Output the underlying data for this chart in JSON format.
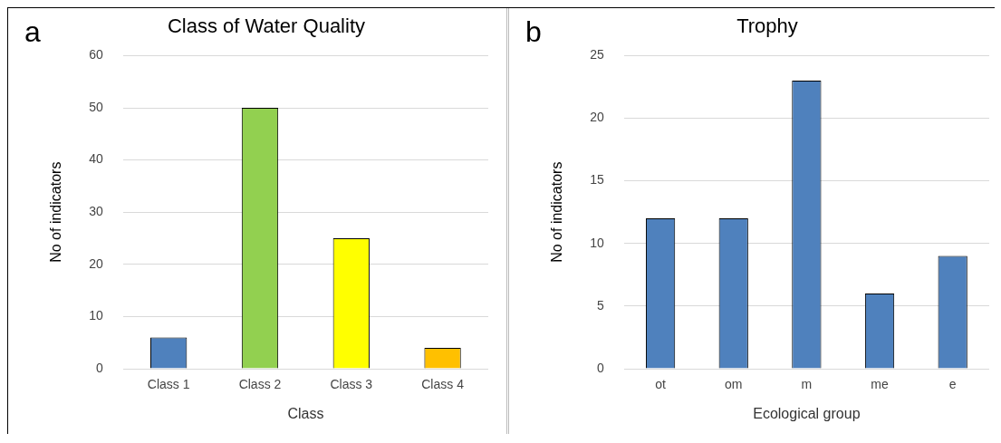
{
  "chart_data": [
    {
      "type": "bar",
      "title": "Class of Water Quality",
      "xlabel": "Class",
      "ylabel": "No of indicators",
      "categories": [
        "Class 1",
        "Class 2",
        "Class 3",
        "Class 4"
      ],
      "values": [
        6,
        50,
        25,
        4
      ],
      "colors": [
        "#4f81bd",
        "#92d050",
        "#ffff00",
        "#ffc000"
      ],
      "ylim": [
        0,
        60
      ],
      "yticks": [
        0,
        10,
        20,
        30,
        40,
        50,
        60
      ],
      "grid": "y",
      "annotations": [
        "a"
      ]
    },
    {
      "type": "bar",
      "title": "Trophy",
      "xlabel": "Ecological group",
      "ylabel": "No of indicators",
      "categories": [
        "ot",
        "om",
        "m",
        "me",
        "e"
      ],
      "values": [
        12,
        12,
        23,
        6,
        9
      ],
      "colors": [
        "#4f81bd",
        "#4f81bd",
        "#4f81bd",
        "#4f81bd",
        "#4f81bd"
      ],
      "ylim": [
        0,
        25
      ],
      "yticks": [
        0,
        5,
        10,
        15,
        20,
        25
      ],
      "grid": "y",
      "annotations": [
        "b"
      ]
    }
  ]
}
